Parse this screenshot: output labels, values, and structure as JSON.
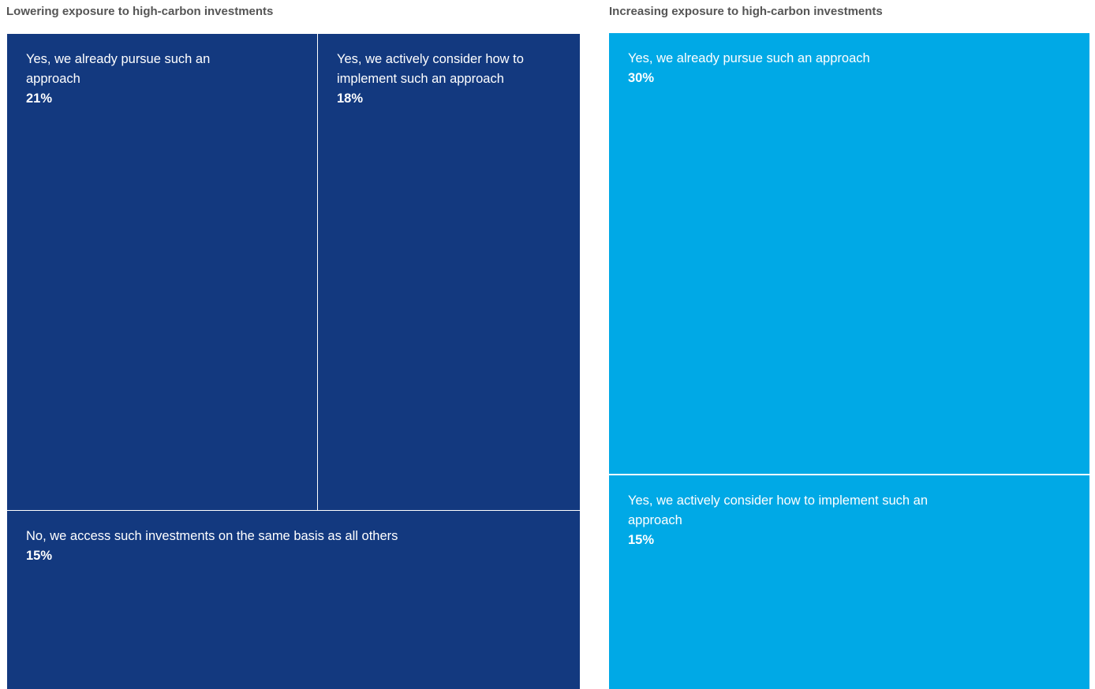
{
  "chart_data": [
    {
      "type": "treemap",
      "title": "Lowering exposure to high-carbon investments",
      "color": "#13397f",
      "items": [
        {
          "label": "Yes, we already pursue such an approach",
          "value": 21,
          "display": "21%"
        },
        {
          "label": "Yes, we actively consider how to implement such an approach",
          "value": 18,
          "display": "18%"
        },
        {
          "label": "No, we access such investments on the same basis as all others",
          "value": 15,
          "display": "15%"
        }
      ]
    },
    {
      "type": "treemap",
      "title": "Increasing exposure to high-carbon investments",
      "color": "#00a9e6",
      "items": [
        {
          "label": "Yes, we already pursue such an approach",
          "value": 30,
          "display": "30%"
        },
        {
          "label": "Yes, we actively consider how to implement such an approach",
          "value": 15,
          "display": "15%"
        }
      ]
    }
  ]
}
